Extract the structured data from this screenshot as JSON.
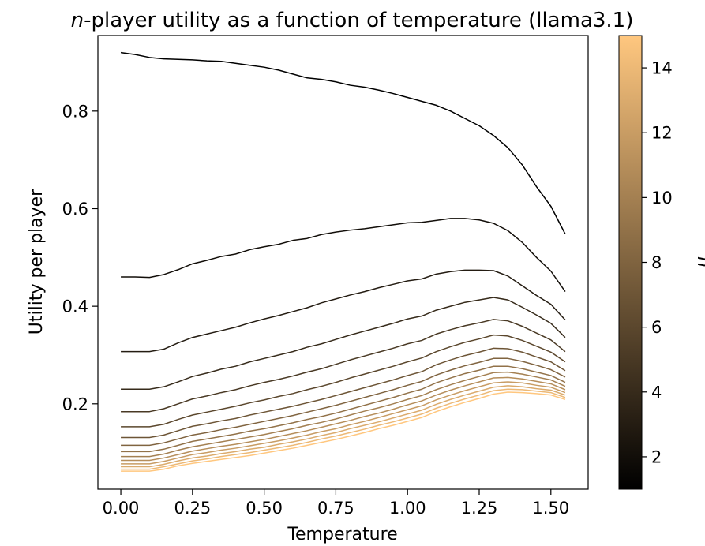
{
  "chart_data": {
    "type": "line",
    "title_var": "n",
    "title_rest": "-player utility as a function of temperature (llama3.1)",
    "xlabel": "Temperature",
    "ylabel": "Utility per player",
    "xlim": [
      -0.08,
      1.63
    ],
    "ylim": [
      0.025,
      0.955
    ],
    "xticks": [
      0.0,
      0.25,
      0.5,
      0.75,
      1.0,
      1.25,
      1.5
    ],
    "xtick_labels": [
      "0.00",
      "0.25",
      "0.50",
      "0.75",
      "1.00",
      "1.25",
      "1.50"
    ],
    "yticks": [
      0.2,
      0.4,
      0.6,
      0.8
    ],
    "ytick_labels": [
      "0.2",
      "0.4",
      "0.6",
      "0.8"
    ],
    "grid": false,
    "colorbar": {
      "label": "n",
      "colormap": "copper",
      "range": [
        1,
        15
      ],
      "ticks": [
        2,
        4,
        6,
        8,
        10,
        12,
        14
      ],
      "tick_labels": [
        "2",
        "4",
        "6",
        "8",
        "10",
        "12",
        "14"
      ],
      "color_min": "#000000",
      "color_max": "#ffc77f"
    },
    "x": [
      0.0,
      0.05,
      0.1,
      0.15,
      0.2,
      0.25,
      0.3,
      0.35,
      0.4,
      0.45,
      0.5,
      0.55,
      0.6,
      0.65,
      0.7,
      0.75,
      0.8,
      0.85,
      0.9,
      0.95,
      1.0,
      1.05,
      1.1,
      1.15,
      1.2,
      1.25,
      1.3,
      1.35,
      1.4,
      1.45,
      1.5,
      1.55
    ],
    "series": [
      {
        "n": 1,
        "values": [
          0.92,
          0.916,
          0.91,
          0.907,
          0.906,
          0.905,
          0.903,
          0.902,
          0.898,
          0.894,
          0.89,
          0.884,
          0.876,
          0.868,
          0.865,
          0.86,
          0.853,
          0.849,
          0.843,
          0.836,
          0.828,
          0.82,
          0.812,
          0.8,
          0.785,
          0.77,
          0.75,
          0.725,
          0.69,
          0.645,
          0.605,
          0.548
        ]
      },
      {
        "n": 2,
        "values": [
          0.46,
          0.46,
          0.459,
          0.465,
          0.475,
          0.487,
          0.494,
          0.502,
          0.507,
          0.516,
          0.522,
          0.527,
          0.535,
          0.539,
          0.547,
          0.552,
          0.556,
          0.559,
          0.563,
          0.567,
          0.571,
          0.572,
          0.576,
          0.58,
          0.58,
          0.577,
          0.57,
          0.555,
          0.531,
          0.5,
          0.472,
          0.43
        ]
      },
      {
        "n": 3,
        "values": [
          0.307,
          0.307,
          0.307,
          0.312,
          0.325,
          0.336,
          0.343,
          0.35,
          0.357,
          0.366,
          0.374,
          0.381,
          0.389,
          0.397,
          0.407,
          0.415,
          0.423,
          0.43,
          0.438,
          0.445,
          0.452,
          0.456,
          0.466,
          0.471,
          0.474,
          0.474,
          0.473,
          0.462,
          0.442,
          0.422,
          0.404,
          0.372
        ]
      },
      {
        "n": 4,
        "values": [
          0.23,
          0.23,
          0.23,
          0.235,
          0.245,
          0.256,
          0.263,
          0.271,
          0.277,
          0.286,
          0.293,
          0.3,
          0.307,
          0.316,
          0.323,
          0.332,
          0.341,
          0.349,
          0.357,
          0.365,
          0.374,
          0.38,
          0.392,
          0.4,
          0.408,
          0.413,
          0.418,
          0.413,
          0.398,
          0.382,
          0.365,
          0.336
        ]
      },
      {
        "n": 5,
        "values": [
          0.184,
          0.184,
          0.184,
          0.19,
          0.2,
          0.21,
          0.216,
          0.223,
          0.229,
          0.237,
          0.244,
          0.25,
          0.257,
          0.265,
          0.272,
          0.281,
          0.29,
          0.298,
          0.306,
          0.314,
          0.323,
          0.33,
          0.343,
          0.352,
          0.36,
          0.366,
          0.373,
          0.37,
          0.359,
          0.345,
          0.331,
          0.307
        ]
      },
      {
        "n": 6,
        "values": [
          0.153,
          0.153,
          0.153,
          0.158,
          0.168,
          0.177,
          0.183,
          0.189,
          0.195,
          0.202,
          0.208,
          0.215,
          0.221,
          0.229,
          0.236,
          0.244,
          0.253,
          0.261,
          0.269,
          0.277,
          0.286,
          0.294,
          0.307,
          0.317,
          0.326,
          0.333,
          0.341,
          0.339,
          0.33,
          0.318,
          0.306,
          0.286
        ]
      },
      {
        "n": 7,
        "values": [
          0.131,
          0.131,
          0.131,
          0.136,
          0.145,
          0.154,
          0.159,
          0.165,
          0.17,
          0.177,
          0.183,
          0.189,
          0.195,
          0.202,
          0.209,
          0.217,
          0.225,
          0.233,
          0.241,
          0.249,
          0.258,
          0.266,
          0.28,
          0.29,
          0.299,
          0.306,
          0.314,
          0.313,
          0.306,
          0.296,
          0.286,
          0.268
        ]
      },
      {
        "n": 8,
        "values": [
          0.115,
          0.115,
          0.115,
          0.12,
          0.128,
          0.136,
          0.141,
          0.147,
          0.152,
          0.158,
          0.164,
          0.17,
          0.176,
          0.183,
          0.19,
          0.197,
          0.205,
          0.213,
          0.221,
          0.229,
          0.238,
          0.246,
          0.259,
          0.269,
          0.278,
          0.285,
          0.293,
          0.293,
          0.287,
          0.279,
          0.27,
          0.255
        ]
      },
      {
        "n": 9,
        "values": [
          0.102,
          0.102,
          0.102,
          0.107,
          0.115,
          0.123,
          0.128,
          0.133,
          0.138,
          0.144,
          0.149,
          0.155,
          0.161,
          0.168,
          0.174,
          0.181,
          0.189,
          0.197,
          0.205,
          0.213,
          0.222,
          0.23,
          0.243,
          0.253,
          0.262,
          0.269,
          0.277,
          0.277,
          0.272,
          0.265,
          0.258,
          0.244
        ]
      },
      {
        "n": 10,
        "values": [
          0.092,
          0.092,
          0.092,
          0.097,
          0.105,
          0.112,
          0.117,
          0.122,
          0.127,
          0.132,
          0.137,
          0.143,
          0.149,
          0.156,
          0.162,
          0.169,
          0.177,
          0.185,
          0.192,
          0.2,
          0.209,
          0.217,
          0.229,
          0.239,
          0.248,
          0.256,
          0.264,
          0.265,
          0.261,
          0.255,
          0.249,
          0.236
        ]
      },
      {
        "n": 11,
        "values": [
          0.084,
          0.084,
          0.084,
          0.089,
          0.096,
          0.103,
          0.108,
          0.113,
          0.117,
          0.122,
          0.127,
          0.133,
          0.139,
          0.145,
          0.152,
          0.159,
          0.166,
          0.174,
          0.181,
          0.189,
          0.198,
          0.206,
          0.218,
          0.228,
          0.237,
          0.245,
          0.253,
          0.254,
          0.251,
          0.246,
          0.241,
          0.229
        ]
      },
      {
        "n": 12,
        "values": [
          0.077,
          0.077,
          0.077,
          0.082,
          0.089,
          0.096,
          0.1,
          0.105,
          0.109,
          0.114,
          0.119,
          0.124,
          0.13,
          0.136,
          0.143,
          0.149,
          0.157,
          0.164,
          0.172,
          0.18,
          0.188,
          0.196,
          0.208,
          0.218,
          0.227,
          0.235,
          0.243,
          0.245,
          0.243,
          0.238,
          0.234,
          0.223
        ]
      },
      {
        "n": 13,
        "values": [
          0.071,
          0.071,
          0.071,
          0.076,
          0.083,
          0.089,
          0.093,
          0.098,
          0.102,
          0.107,
          0.111,
          0.117,
          0.122,
          0.128,
          0.135,
          0.141,
          0.149,
          0.156,
          0.163,
          0.171,
          0.179,
          0.187,
          0.199,
          0.209,
          0.218,
          0.226,
          0.234,
          0.237,
          0.235,
          0.231,
          0.228,
          0.218
        ]
      },
      {
        "n": 14,
        "values": [
          0.066,
          0.066,
          0.066,
          0.071,
          0.077,
          0.083,
          0.087,
          0.092,
          0.096,
          0.1,
          0.105,
          0.11,
          0.115,
          0.121,
          0.128,
          0.134,
          0.141,
          0.148,
          0.156,
          0.163,
          0.171,
          0.179,
          0.191,
          0.201,
          0.21,
          0.218,
          0.227,
          0.23,
          0.229,
          0.226,
          0.223,
          0.213
        ]
      },
      {
        "n": 15,
        "values": [
          0.062,
          0.062,
          0.062,
          0.066,
          0.073,
          0.078,
          0.082,
          0.086,
          0.09,
          0.094,
          0.099,
          0.104,
          0.109,
          0.115,
          0.121,
          0.127,
          0.134,
          0.141,
          0.149,
          0.156,
          0.164,
          0.172,
          0.184,
          0.194,
          0.203,
          0.211,
          0.22,
          0.224,
          0.223,
          0.221,
          0.218,
          0.209
        ]
      }
    ]
  }
}
